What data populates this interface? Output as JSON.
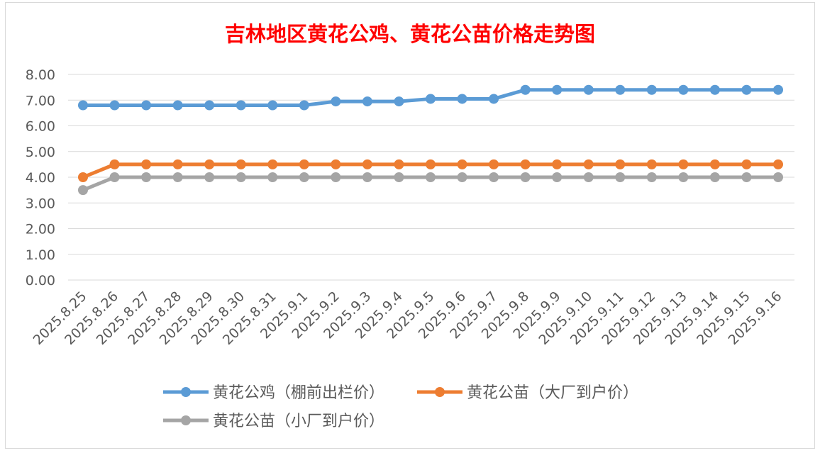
{
  "chart_data": {
    "type": "line",
    "title": "吉林地区黄花公鸡、黄花公苗价格走势图",
    "title_color": "#ff0000",
    "xlabel": "",
    "ylabel": "",
    "ylim": [
      0,
      8
    ],
    "yticks": [
      "0.00",
      "1.00",
      "2.00",
      "3.00",
      "4.00",
      "5.00",
      "6.00",
      "7.00",
      "8.00"
    ],
    "grid": true,
    "legend_position": "bottom",
    "categories": [
      "2025.8.25",
      "2025.8.26",
      "2025.8.27",
      "2025.8.28",
      "2025.8.29",
      "2025.8.30",
      "2025.8.31",
      "2025.9.1",
      "2025.9.2",
      "2025.9.3",
      "2025.9.4",
      "2025.9.5",
      "2025.9.6",
      "2025.9.7",
      "2025.9.8",
      "2025.9.9",
      "2025.9.10",
      "2025.9.11",
      "2025.9.12",
      "2025.9.13",
      "2025.9.14",
      "2025.9.15",
      "2025.9.16"
    ],
    "series": [
      {
        "name": "黄花公鸡（棚前出栏价）",
        "color": "#5b9bd5",
        "values": [
          6.8,
          6.8,
          6.8,
          6.8,
          6.8,
          6.8,
          6.8,
          6.8,
          6.95,
          6.95,
          6.95,
          7.05,
          7.05,
          7.05,
          7.4,
          7.4,
          7.4,
          7.4,
          7.4,
          7.4,
          7.4,
          7.4,
          7.4
        ]
      },
      {
        "name": "黄花公苗（大厂到户价）",
        "color": "#ed7d31",
        "values": [
          4.0,
          4.5,
          4.5,
          4.5,
          4.5,
          4.5,
          4.5,
          4.5,
          4.5,
          4.5,
          4.5,
          4.5,
          4.5,
          4.5,
          4.5,
          4.5,
          4.5,
          4.5,
          4.5,
          4.5,
          4.5,
          4.5,
          4.5
        ]
      },
      {
        "name": "黄花公苗（小厂到户价）",
        "color": "#a5a5a5",
        "values": [
          3.5,
          4.0,
          4.0,
          4.0,
          4.0,
          4.0,
          4.0,
          4.0,
          4.0,
          4.0,
          4.0,
          4.0,
          4.0,
          4.0,
          4.0,
          4.0,
          4.0,
          4.0,
          4.0,
          4.0,
          4.0,
          4.0,
          4.0
        ]
      }
    ]
  }
}
